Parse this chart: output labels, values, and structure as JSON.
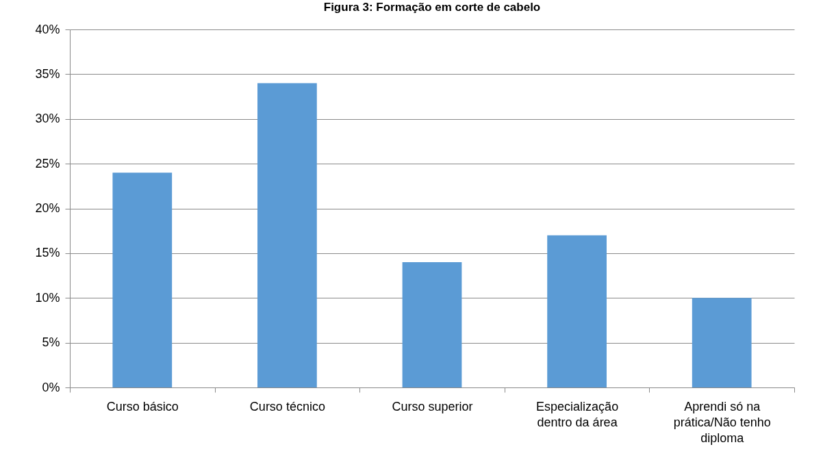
{
  "chart_data": {
    "type": "bar",
    "title": "Figura 3: Formação em corte de cabelo",
    "categories": [
      "Curso básico",
      "Curso técnico",
      "Curso superior",
      "Especialização dentro da área",
      "Aprendi só na prática/Não tenho diploma"
    ],
    "values": [
      24,
      34,
      14,
      17,
      10
    ],
    "color": "#5b9bd5",
    "ylim": [
      0,
      40
    ],
    "yticks": [
      {
        "value": 0,
        "label": "0%"
      },
      {
        "value": 5,
        "label": "5%"
      },
      {
        "value": 10,
        "label": "10%"
      },
      {
        "value": 15,
        "label": "15%"
      },
      {
        "value": 20,
        "label": "20%"
      },
      {
        "value": 25,
        "label": "25%"
      },
      {
        "value": 30,
        "label": "30%"
      },
      {
        "value": 35,
        "label": "35%"
      },
      {
        "value": 40,
        "label": "40%"
      }
    ],
    "grid": "y"
  }
}
